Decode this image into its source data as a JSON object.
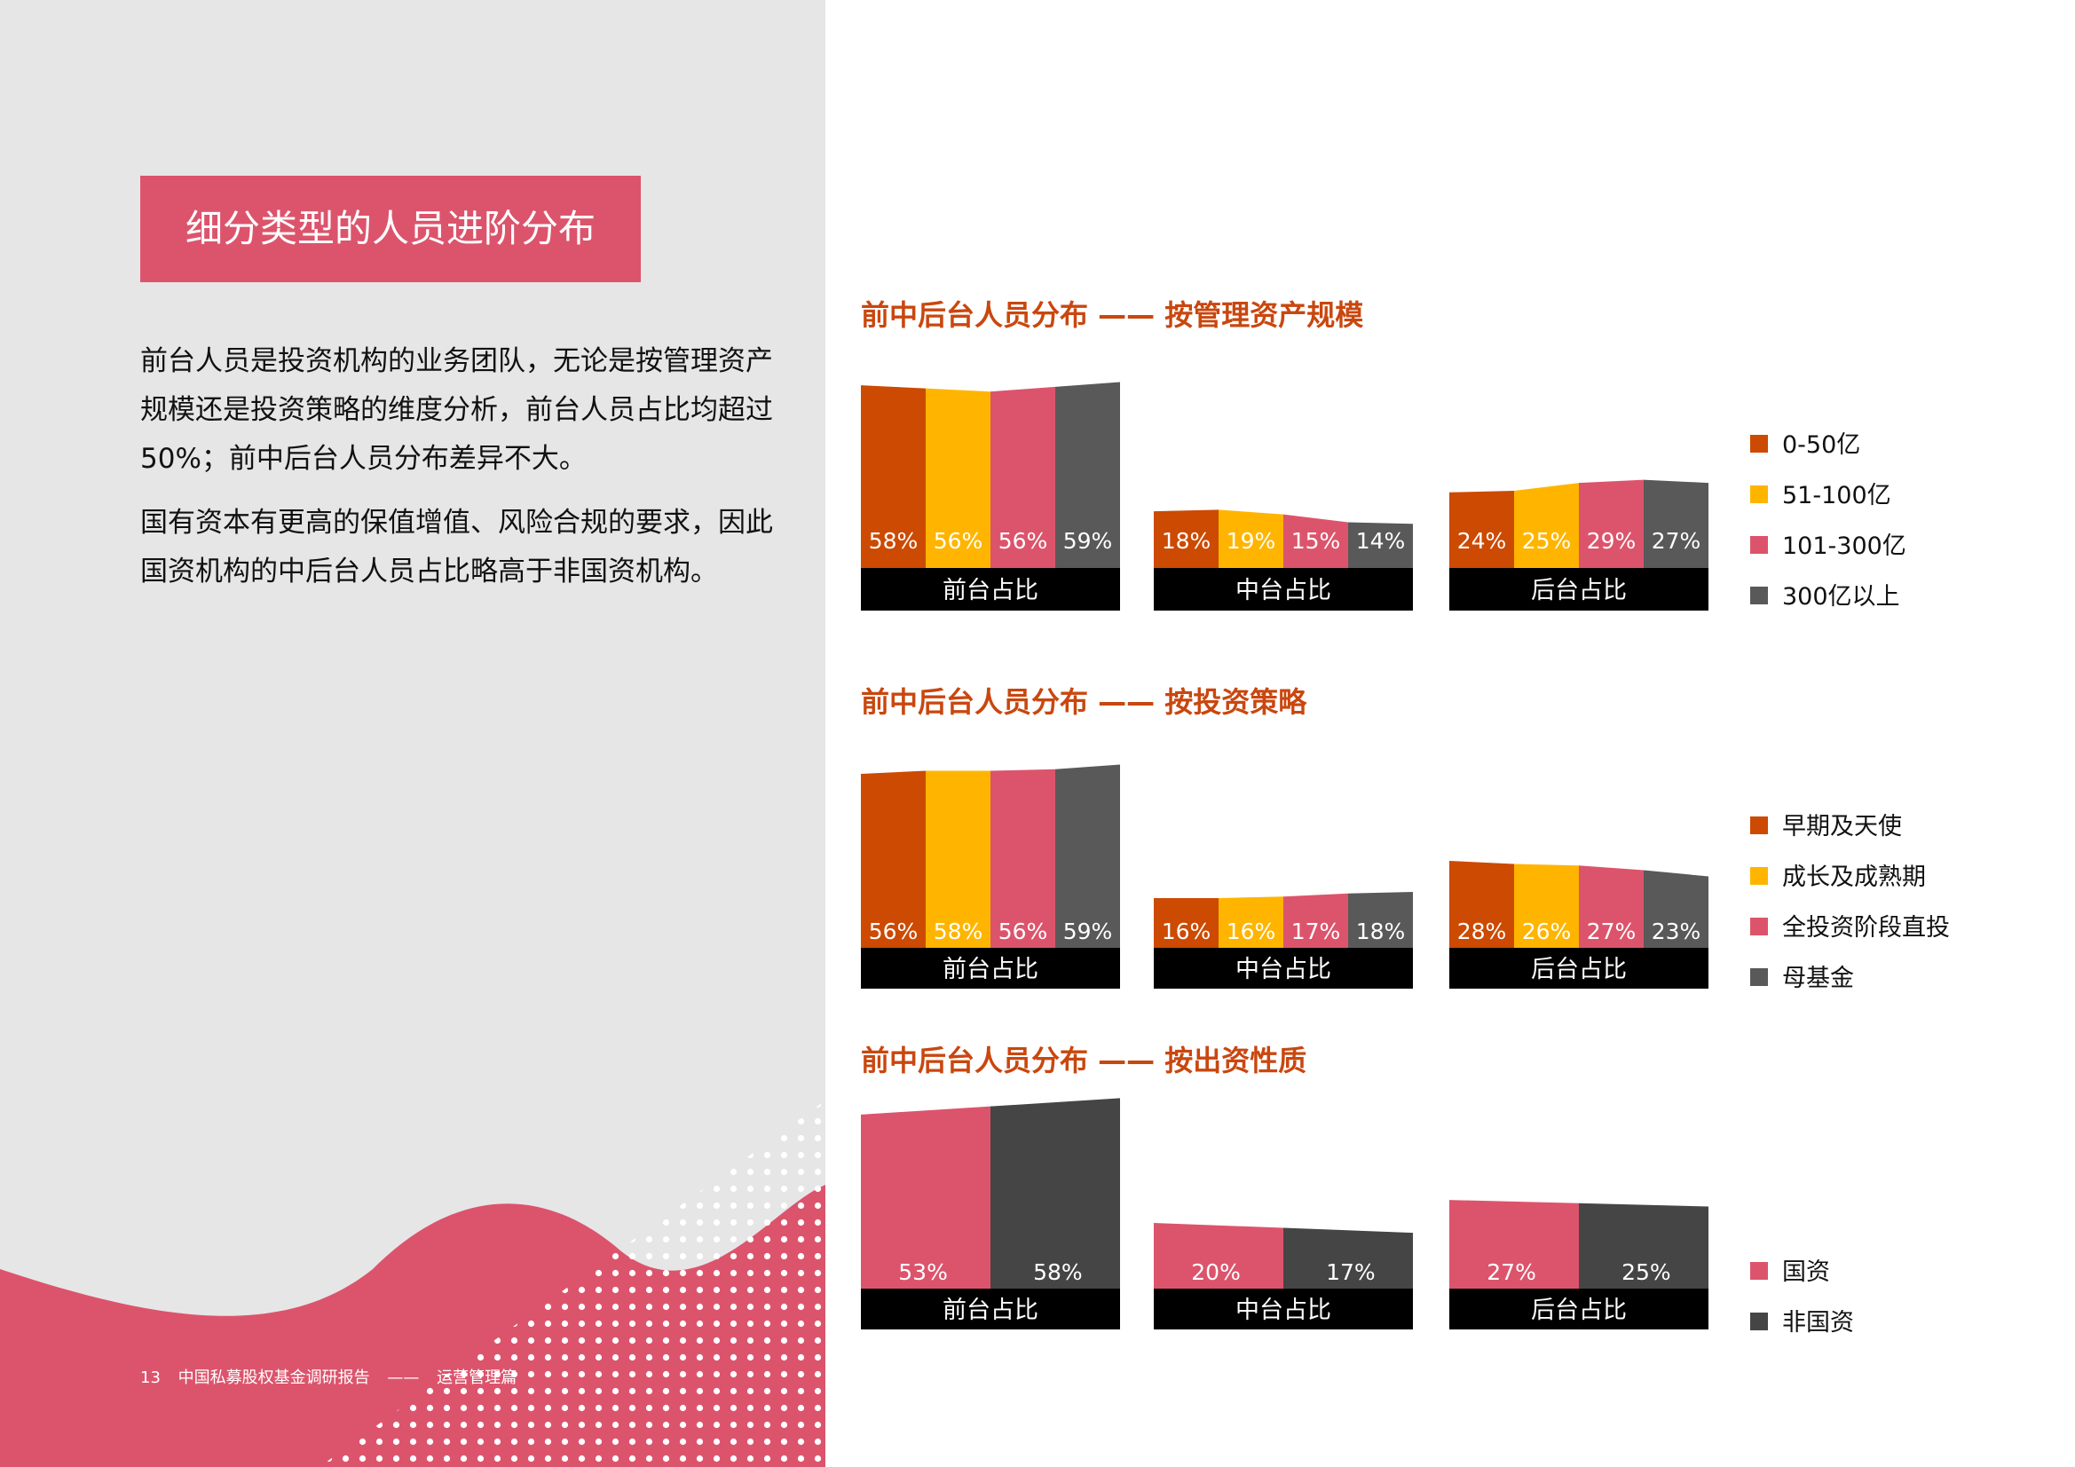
{
  "page": {
    "title": "细分类型的人员进阶分布",
    "paragraphs": [
      "前台人员是投资机构的业务团队，无论是按管理资产规模还是投资策略的维度分析，前台人员占比均超过50%；前中后台人员分布差异不大。",
      "国有资本有更高的保值增值、风险合规的要求，因此国资机构的中后台人员占比略高于非国资机构。"
    ],
    "footer": {
      "page_number": "13",
      "report": "中国私募股权基金调研报告",
      "dash": "——",
      "section": "运营管理篇"
    }
  },
  "colors": {
    "accent": "#dc546c",
    "title_orange": "#c9470f",
    "dark_orange": "#cc4a02",
    "yellow": "#ffb500",
    "pink": "#dc546c",
    "gray": "#595959",
    "dark_gray": "#454545",
    "band": "#000000"
  },
  "chart_data": [
    {
      "type": "area",
      "title": "前中后台人员分布 —— 按管理资产规模",
      "categories": [
        "前台占比",
        "中台占比",
        "后台占比"
      ],
      "series": [
        {
          "name": "0-50亿",
          "color": "#cc4a02",
          "values": [
            58,
            18,
            24
          ]
        },
        {
          "name": "51-100亿",
          "color": "#ffb500",
          "values": [
            56,
            19,
            25
          ]
        },
        {
          "name": "101-300亿",
          "color": "#dc546c",
          "values": [
            56,
            15,
            29
          ]
        },
        {
          "name": "300亿以上",
          "color": "#595959",
          "values": [
            59,
            14,
            27
          ]
        }
      ],
      "labels": [
        [
          "58%",
          "56%",
          "56%",
          "59%"
        ],
        [
          "18%",
          "19%",
          "15%",
          "14%"
        ],
        [
          "24%",
          "25%",
          "29%",
          "27%"
        ]
      ]
    },
    {
      "type": "area",
      "title": "前中后台人员分布 —— 按投资策略",
      "categories": [
        "前台占比",
        "中台占比",
        "后台占比"
      ],
      "series": [
        {
          "name": "早期及天使",
          "color": "#cc4a02",
          "values": [
            56,
            16,
            28
          ]
        },
        {
          "name": "成长及成熟期",
          "color": "#ffb500",
          "values": [
            58,
            16,
            26
          ]
        },
        {
          "name": "全投资阶段直投",
          "color": "#dc546c",
          "values": [
            56,
            17,
            27
          ]
        },
        {
          "name": "母基金",
          "color": "#595959",
          "values": [
            59,
            18,
            23
          ]
        }
      ],
      "labels": [
        [
          "56%",
          "58%",
          "56%",
          "59%"
        ],
        [
          "16%",
          "16%",
          "17%",
          "18%"
        ],
        [
          "28%",
          "26%",
          "27%",
          "23%"
        ]
      ]
    },
    {
      "type": "area",
      "title": "前中后台人员分布 —— 按出资性质",
      "categories": [
        "前台占比",
        "中台占比",
        "后台占比"
      ],
      "series": [
        {
          "name": "国资",
          "color": "#dc546c",
          "values": [
            53,
            20,
            27
          ]
        },
        {
          "name": "非国资",
          "color": "#454545",
          "values": [
            58,
            17,
            25
          ]
        }
      ],
      "labels": [
        [
          "53%",
          "58%"
        ],
        [
          "20%",
          "17%"
        ],
        [
          "27%",
          "25%"
        ]
      ]
    }
  ]
}
